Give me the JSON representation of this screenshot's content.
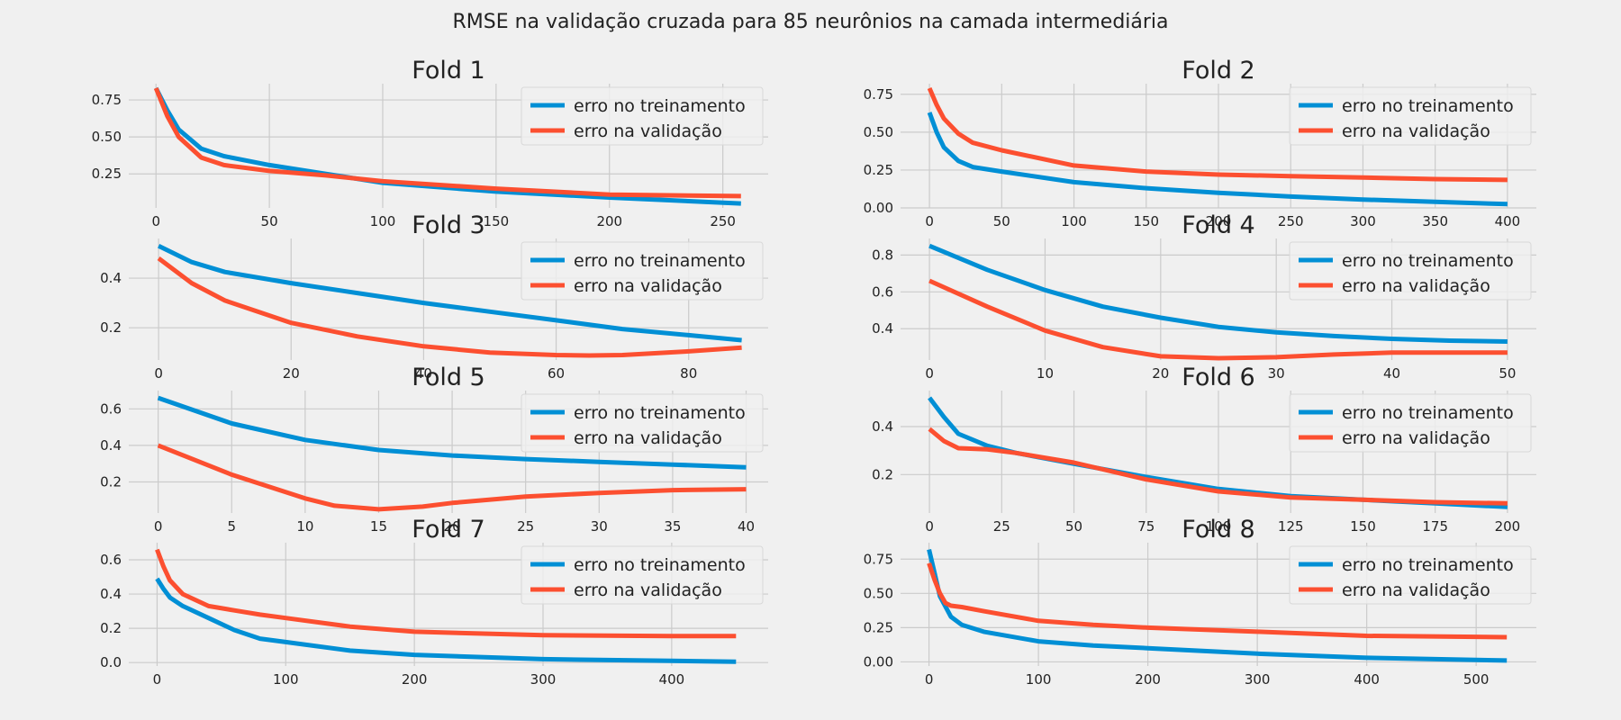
{
  "suptitle": "RMSE na validação cruzada para  85 neurônios na camada intermediária",
  "colors": {
    "train": "#008fd5",
    "val": "#fc4f30",
    "grid": "#cbcbcb",
    "background": "#f0f0f0"
  },
  "legend": {
    "train": "erro no treinamento",
    "val": "erro na validação",
    "loc": "upper right"
  },
  "chart_data": [
    {
      "type": "line",
      "title": "Fold 1",
      "xlim": [
        -12,
        270
      ],
      "ylim": [
        0.02,
        0.86
      ],
      "xticks": [
        0,
        50,
        100,
        150,
        200,
        250
      ],
      "yticks": [
        0.25,
        0.5,
        0.75
      ],
      "ytick_decimals": 2,
      "series": [
        {
          "name": "erro no treinamento",
          "x": [
            0,
            5,
            10,
            20,
            30,
            50,
            75,
            100,
            150,
            200,
            258
          ],
          "y": [
            0.83,
            0.68,
            0.55,
            0.42,
            0.37,
            0.31,
            0.25,
            0.19,
            0.13,
            0.09,
            0.05
          ]
        },
        {
          "name": "erro na validação",
          "x": [
            0,
            5,
            10,
            20,
            30,
            50,
            75,
            100,
            150,
            200,
            258
          ],
          "y": [
            0.83,
            0.64,
            0.5,
            0.36,
            0.31,
            0.27,
            0.24,
            0.2,
            0.15,
            0.11,
            0.1
          ]
        }
      ]
    },
    {
      "type": "line",
      "title": "Fold 2",
      "xlim": [
        -20,
        420
      ],
      "ylim": [
        0,
        0.82
      ],
      "xticks": [
        0,
        50,
        100,
        150,
        200,
        250,
        300,
        350,
        400
      ],
      "yticks": [
        0,
        0.25,
        0.5,
        0.75
      ],
      "ytick_decimals": 2,
      "series": [
        {
          "name": "erro no treinamento",
          "x": [
            0,
            5,
            10,
            20,
            30,
            50,
            100,
            150,
            200,
            250,
            300,
            350,
            400
          ],
          "y": [
            0.63,
            0.5,
            0.4,
            0.31,
            0.27,
            0.24,
            0.17,
            0.13,
            0.1,
            0.075,
            0.055,
            0.04,
            0.025
          ]
        },
        {
          "name": "erro na validação",
          "x": [
            0,
            5,
            10,
            20,
            30,
            50,
            100,
            150,
            200,
            250,
            300,
            350,
            400
          ],
          "y": [
            0.79,
            0.68,
            0.59,
            0.49,
            0.43,
            0.38,
            0.28,
            0.24,
            0.22,
            0.21,
            0.2,
            0.19,
            0.185
          ]
        }
      ]
    },
    {
      "type": "line",
      "title": "Fold 3",
      "xlim": [
        -4.5,
        92
      ],
      "ylim": [
        0.07,
        0.56
      ],
      "xticks": [
        0,
        20,
        40,
        60,
        80
      ],
      "yticks": [
        0.2,
        0.4
      ],
      "ytick_decimals": 1,
      "series": [
        {
          "name": "erro no treinamento",
          "x": [
            0,
            5,
            10,
            20,
            30,
            40,
            50,
            60,
            70,
            80,
            88
          ],
          "y": [
            0.53,
            0.465,
            0.425,
            0.38,
            0.34,
            0.3,
            0.265,
            0.23,
            0.195,
            0.17,
            0.15
          ]
        },
        {
          "name": "erro na validação",
          "x": [
            0,
            5,
            10,
            20,
            30,
            40,
            50,
            60,
            65,
            70,
            80,
            88
          ],
          "y": [
            0.48,
            0.38,
            0.31,
            0.22,
            0.165,
            0.125,
            0.1,
            0.09,
            0.088,
            0.09,
            0.105,
            0.12
          ]
        }
      ]
    },
    {
      "type": "line",
      "title": "Fold 4",
      "xlim": [
        -2.5,
        52.5
      ],
      "ylim": [
        0.23,
        0.89
      ],
      "xticks": [
        0,
        10,
        20,
        30,
        40,
        50
      ],
      "yticks": [
        0.4,
        0.6,
        0.8
      ],
      "ytick_decimals": 1,
      "series": [
        {
          "name": "erro no treinamento",
          "x": [
            0,
            5,
            10,
            15,
            20,
            25,
            30,
            35,
            40,
            45,
            50
          ],
          "y": [
            0.85,
            0.72,
            0.61,
            0.52,
            0.46,
            0.41,
            0.38,
            0.36,
            0.345,
            0.335,
            0.33
          ]
        },
        {
          "name": "erro na validação",
          "x": [
            0,
            5,
            10,
            15,
            20,
            25,
            30,
            35,
            40,
            45,
            50
          ],
          "y": [
            0.66,
            0.52,
            0.39,
            0.3,
            0.25,
            0.24,
            0.245,
            0.26,
            0.27,
            0.27,
            0.27
          ]
        }
      ]
    },
    {
      "type": "line",
      "title": "Fold 5",
      "xlim": [
        -2,
        41.5
      ],
      "ylim": [
        0.03,
        0.7
      ],
      "xticks": [
        0,
        5,
        10,
        15,
        20,
        25,
        30,
        35,
        40
      ],
      "yticks": [
        0.2,
        0.4,
        0.6
      ],
      "ytick_decimals": 1,
      "series": [
        {
          "name": "erro no treinamento",
          "x": [
            0,
            5,
            10,
            15,
            20,
            25,
            30,
            35,
            40
          ],
          "y": [
            0.66,
            0.52,
            0.43,
            0.375,
            0.345,
            0.325,
            0.31,
            0.295,
            0.28
          ]
        },
        {
          "name": "erro na validação",
          "x": [
            0,
            5,
            10,
            12,
            15,
            18,
            20,
            25,
            30,
            35,
            40
          ],
          "y": [
            0.4,
            0.24,
            0.11,
            0.07,
            0.05,
            0.065,
            0.085,
            0.12,
            0.14,
            0.155,
            0.16
          ]
        }
      ]
    },
    {
      "type": "line",
      "title": "Fold 6",
      "xlim": [
        -10,
        210
      ],
      "ylim": [
        0.04,
        0.55
      ],
      "xticks": [
        0,
        25,
        50,
        75,
        100,
        125,
        150,
        175,
        200
      ],
      "yticks": [
        0.2,
        0.4
      ],
      "ytick_decimals": 1,
      "series": [
        {
          "name": "erro no treinamento",
          "x": [
            0,
            5,
            10,
            20,
            30,
            50,
            75,
            100,
            125,
            150,
            175,
            200
          ],
          "y": [
            0.52,
            0.44,
            0.37,
            0.32,
            0.29,
            0.245,
            0.19,
            0.14,
            0.11,
            0.095,
            0.08,
            0.065
          ]
        },
        {
          "name": "erro na validação",
          "x": [
            0,
            5,
            10,
            20,
            30,
            50,
            75,
            100,
            125,
            150,
            175,
            200
          ],
          "y": [
            0.39,
            0.34,
            0.31,
            0.305,
            0.29,
            0.25,
            0.18,
            0.13,
            0.105,
            0.095,
            0.085,
            0.08
          ]
        }
      ]
    },
    {
      "type": "line",
      "title": "Fold 7",
      "xlim": [
        -22,
        475
      ],
      "ylim": [
        -0.02,
        0.7
      ],
      "xticks": [
        0,
        100,
        200,
        300,
        400
      ],
      "yticks": [
        0,
        0.2,
        0.4,
        0.6
      ],
      "ytick_decimals": 1,
      "series": [
        {
          "name": "erro no treinamento",
          "x": [
            0,
            5,
            10,
            20,
            40,
            60,
            80,
            100,
            150,
            200,
            300,
            400,
            450
          ],
          "y": [
            0.49,
            0.43,
            0.38,
            0.33,
            0.26,
            0.19,
            0.14,
            0.12,
            0.07,
            0.045,
            0.02,
            0.01,
            0.005
          ]
        },
        {
          "name": "erro na validação",
          "x": [
            0,
            5,
            10,
            20,
            40,
            60,
            80,
            100,
            150,
            200,
            300,
            400,
            450
          ],
          "y": [
            0.66,
            0.56,
            0.48,
            0.4,
            0.33,
            0.305,
            0.28,
            0.26,
            0.21,
            0.18,
            0.16,
            0.155,
            0.155
          ]
        }
      ]
    },
    {
      "type": "line",
      "title": "Fold 8",
      "xlim": [
        -26,
        555
      ],
      "ylim": [
        -0.03,
        0.87
      ],
      "xticks": [
        0,
        100,
        200,
        300,
        400,
        500
      ],
      "yticks": [
        0,
        0.25,
        0.5,
        0.75
      ],
      "ytick_decimals": 2,
      "series": [
        {
          "name": "erro no treinamento",
          "x": [
            0,
            5,
            10,
            20,
            30,
            50,
            100,
            150,
            200,
            300,
            400,
            528
          ],
          "y": [
            0.82,
            0.65,
            0.48,
            0.33,
            0.27,
            0.22,
            0.15,
            0.12,
            0.1,
            0.06,
            0.03,
            0.01
          ]
        },
        {
          "name": "erro na validação",
          "x": [
            0,
            5,
            10,
            15,
            20,
            30,
            50,
            100,
            150,
            200,
            300,
            400,
            528
          ],
          "y": [
            0.72,
            0.6,
            0.5,
            0.43,
            0.41,
            0.4,
            0.37,
            0.3,
            0.27,
            0.25,
            0.22,
            0.19,
            0.18
          ]
        }
      ]
    }
  ]
}
